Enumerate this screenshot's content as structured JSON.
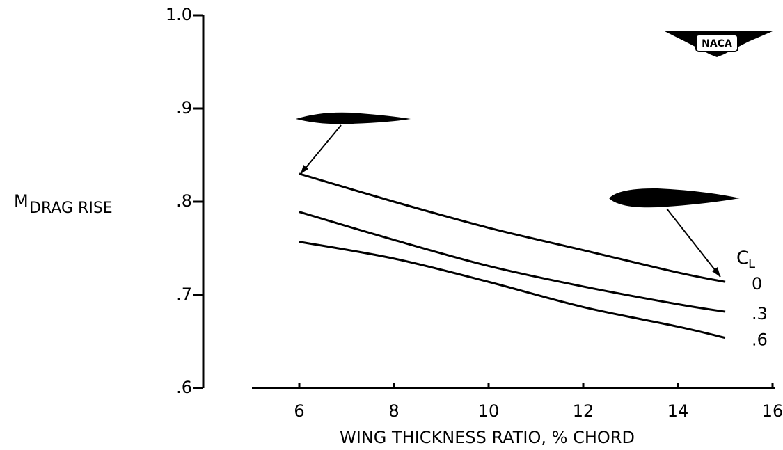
{
  "chart_data": {
    "type": "line",
    "x_label": "WING THICKNESS RATIO, % CHORD",
    "y_label": "M",
    "y_label_sub": "DRAG RISE",
    "legend_title": "C",
    "legend_title_sub": "L",
    "logo": "NACA",
    "x": [
      6,
      8,
      10,
      12,
      14,
      15
    ],
    "series": [
      {
        "name": "0",
        "color": "#000000",
        "values": [
          0.83,
          0.8,
          0.772,
          0.748,
          0.724,
          0.714
        ]
      },
      {
        "name": ".3",
        "color": "#000000",
        "values": [
          0.789,
          0.759,
          0.731,
          0.709,
          0.69,
          0.682
        ]
      },
      {
        "name": ".6",
        "color": "#000000",
        "values": [
          0.757,
          0.739,
          0.714,
          0.687,
          0.666,
          0.654
        ]
      }
    ],
    "xlim": [
      5,
      16
    ],
    "xticks": [
      6,
      8,
      10,
      12,
      14,
      16
    ],
    "ylim": [
      0.6,
      1.0
    ],
    "yticks": [
      {
        "value": 0.6,
        "label": ".6"
      },
      {
        "value": 0.7,
        "label": ".7"
      },
      {
        "value": 0.8,
        "label": ".8"
      },
      {
        "value": 0.9,
        "label": ".9"
      },
      {
        "value": 1.0,
        "label": "1.0"
      }
    ]
  }
}
